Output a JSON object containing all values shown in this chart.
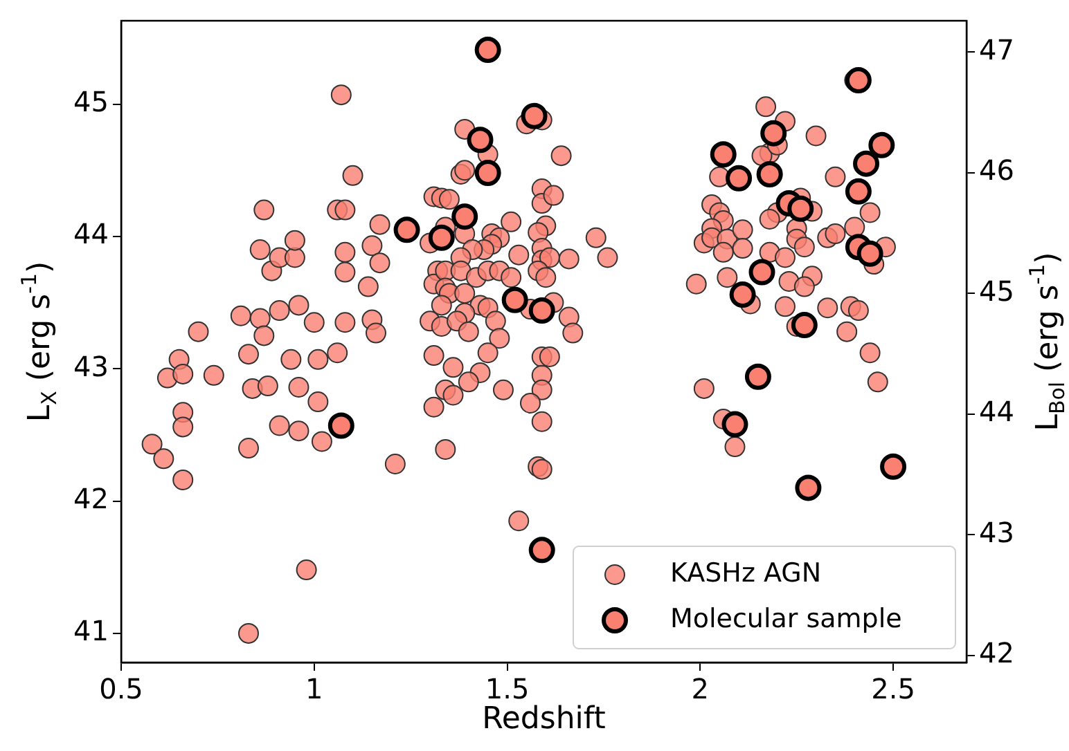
{
  "chart_data": {
    "type": "scatter",
    "xlabel": "Redshift",
    "ylabel": "L$_{X}$ (erg s$^{-1}$)",
    "y2label": "L$_{Bol}$ (erg s$^{-1}$)",
    "xlim": [
      0.5,
      2.69
    ],
    "xticks": [
      0.5,
      1,
      1.5,
      2,
      2.5
    ],
    "ylim": [
      40.78,
      45.63
    ],
    "yticks": [
      41,
      42,
      43,
      44,
      45
    ],
    "y2lim": [
      41.94,
      47.26
    ],
    "y2ticks": [
      42,
      43,
      44,
      45,
      46,
      47
    ],
    "grid": false,
    "legend": "bottom right",
    "marker": "circle",
    "series": [
      {
        "name": "KASHz AGN",
        "color": "#fa8072",
        "x": [
          0.58,
          0.61,
          0.62,
          0.65,
          0.66,
          0.66,
          0.66,
          0.66,
          0.7,
          0.74,
          0.81,
          0.83,
          0.84,
          0.83,
          0.83,
          0.86,
          0.86,
          0.87,
          0.87,
          0.88,
          0.89,
          0.91,
          0.91,
          0.91,
          0.94,
          0.95,
          0.95,
          0.96,
          0.96,
          0.96,
          0.98,
          1.0,
          1.01,
          1.01,
          1.02,
          1.06,
          1.07,
          1.06,
          1.08,
          1.08,
          1.08,
          1.08,
          1.1,
          1.14,
          1.15,
          1.17,
          1.17,
          1.15,
          1.16,
          1.21,
          1.39,
          1.55,
          1.59,
          1.45,
          1.64,
          1.38,
          1.39,
          1.31,
          1.33,
          1.35,
          1.59,
          1.59,
          1.62,
          1.34,
          1.39,
          1.51,
          1.6,
          1.58,
          1.73,
          1.76,
          1.3,
          1.46,
          1.48,
          1.46,
          1.44,
          1.41,
          1.38,
          1.53,
          1.59,
          1.59,
          1.61,
          1.66,
          1.32,
          1.31,
          1.34,
          1.38,
          1.42,
          1.45,
          1.48,
          1.51,
          1.58,
          1.6,
          1.34,
          1.35,
          1.39,
          1.33,
          1.43,
          1.45,
          1.56,
          1.62,
          1.39,
          1.3,
          1.33,
          1.37,
          1.47,
          1.66,
          1.67,
          1.4,
          1.48,
          1.31,
          1.45,
          1.59,
          1.61,
          1.36,
          1.43,
          1.4,
          1.59,
          1.34,
          1.36,
          1.49,
          1.59,
          1.56,
          1.31,
          1.59,
          1.34,
          1.58,
          1.59,
          1.53,
          2.4,
          2.17,
          2.22,
          2.3,
          2.18,
          2.16,
          2.2,
          2.05,
          2.35,
          2.03,
          2.05,
          2.06,
          2.26,
          2.29,
          2.2,
          2.18,
          2.03,
          2.01,
          2.03,
          2.07,
          2.06,
          2.11,
          2.11,
          2.18,
          2.22,
          2.25,
          2.25,
          2.27,
          2.33,
          2.35,
          2.4,
          2.44,
          2.48,
          2.45,
          1.99,
          2.07,
          2.23,
          2.29,
          2.27,
          2.13,
          2.22,
          2.33,
          2.39,
          2.41,
          2.25,
          2.38,
          2.44,
          2.46,
          2.01,
          2.06,
          2.09
        ],
        "values": [
          42.43,
          42.32,
          42.93,
          43.07,
          42.96,
          42.67,
          42.56,
          42.16,
          43.28,
          42.95,
          43.4,
          43.11,
          42.85,
          42.4,
          41.0,
          43.9,
          43.38,
          43.25,
          44.2,
          42.87,
          43.74,
          43.84,
          43.44,
          42.57,
          43.07,
          43.84,
          43.97,
          43.48,
          42.86,
          42.53,
          41.48,
          43.35,
          43.07,
          42.75,
          42.45,
          43.12,
          45.07,
          44.2,
          44.2,
          43.88,
          43.73,
          43.35,
          44.46,
          43.62,
          43.93,
          44.09,
          43.8,
          43.37,
          43.27,
          42.28,
          44.81,
          44.85,
          44.88,
          44.62,
          44.61,
          44.47,
          44.5,
          44.3,
          44.29,
          44.28,
          44.36,
          44.25,
          44.31,
          44.07,
          44.02,
          44.11,
          44.08,
          44.03,
          43.99,
          43.84,
          43.95,
          44.02,
          43.99,
          43.94,
          43.9,
          43.9,
          43.84,
          43.86,
          43.91,
          43.82,
          43.84,
          43.83,
          43.74,
          43.64,
          43.74,
          43.74,
          43.69,
          43.74,
          43.74,
          43.69,
          43.74,
          43.69,
          43.61,
          43.57,
          43.57,
          43.48,
          43.48,
          43.46,
          43.45,
          43.5,
          43.42,
          43.36,
          43.32,
          43.36,
          43.36,
          43.39,
          43.27,
          43.28,
          43.23,
          43.1,
          43.12,
          43.09,
          43.09,
          43.01,
          42.97,
          42.9,
          42.95,
          42.84,
          42.8,
          42.84,
          42.84,
          42.74,
          42.71,
          42.6,
          42.39,
          42.26,
          42.24,
          41.85,
          45.18,
          44.98,
          44.87,
          44.76,
          44.63,
          44.61,
          44.69,
          44.45,
          44.45,
          44.24,
          44.18,
          44.12,
          44.29,
          44.19,
          44.18,
          44.13,
          44.06,
          43.95,
          43.99,
          43.98,
          43.88,
          44.05,
          43.91,
          43.88,
          43.84,
          44.06,
          43.98,
          43.92,
          43.99,
          44.02,
          44.07,
          44.18,
          43.92,
          43.79,
          43.64,
          43.69,
          43.66,
          43.7,
          43.62,
          43.49,
          43.47,
          43.46,
          43.47,
          43.44,
          43.32,
          43.28,
          43.12,
          42.9,
          42.85,
          42.62,
          42.41
        ]
      },
      {
        "name": "Molecular sample",
        "color": "#fa8072",
        "x": [
          1.07,
          1.24,
          1.45,
          1.57,
          1.43,
          1.45,
          1.39,
          1.33,
          1.52,
          1.59,
          1.59,
          2.41,
          2.19,
          2.47,
          2.06,
          2.43,
          2.1,
          2.18,
          2.41,
          2.23,
          2.26,
          2.41,
          2.44,
          2.16,
          2.11,
          2.27,
          2.15,
          2.09,
          2.28,
          2.5
        ],
        "values": [
          42.57,
          44.05,
          45.41,
          44.91,
          44.73,
          44.48,
          44.15,
          43.99,
          43.52,
          43.44,
          41.63,
          45.18,
          44.78,
          44.69,
          44.62,
          44.55,
          44.44,
          44.47,
          44.34,
          44.25,
          44.21,
          43.92,
          43.87,
          43.73,
          43.56,
          43.33,
          42.94,
          42.58,
          42.1,
          42.26
        ]
      }
    ]
  }
}
